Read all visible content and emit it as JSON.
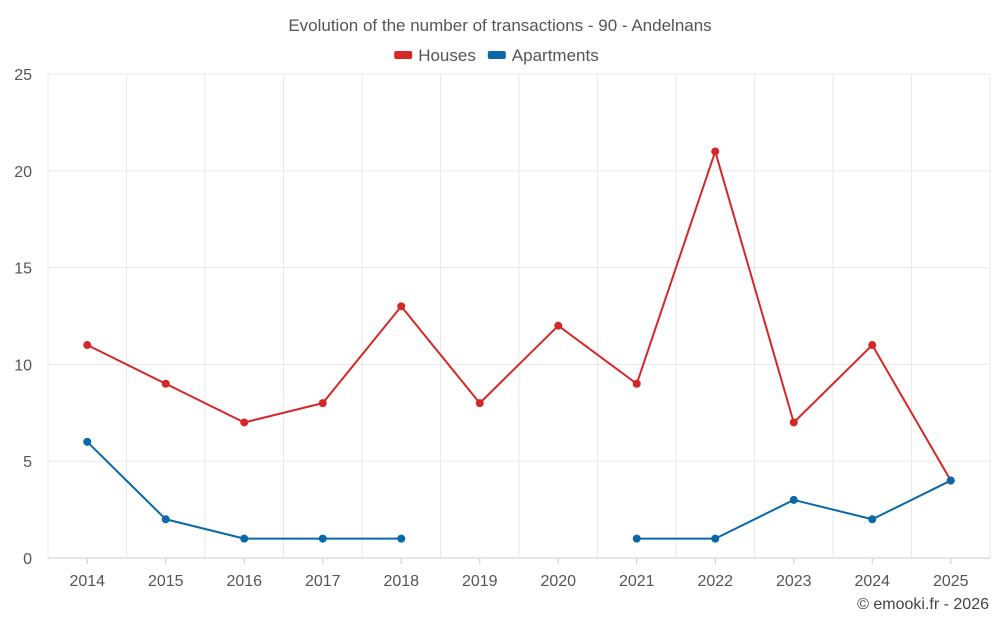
{
  "chart_data": {
    "type": "line",
    "title": "Evolution of the number of transactions - 90 - Andelnans",
    "xlabel": "",
    "ylabel": "",
    "categories": [
      "2014",
      "2015",
      "2016",
      "2017",
      "2018",
      "2019",
      "2020",
      "2021",
      "2022",
      "2023",
      "2024",
      "2025"
    ],
    "ylim": [
      0,
      25
    ],
    "yticks": [
      0,
      5,
      10,
      15,
      20,
      25
    ],
    "grid": true,
    "legend_position": "top-center",
    "series": [
      {
        "name": "Houses",
        "color": "#d62728",
        "values": [
          11,
          9,
          7,
          8,
          13,
          8,
          12,
          9,
          21,
          7,
          11,
          4
        ]
      },
      {
        "name": "Apartments",
        "color": "#0868a8",
        "values": [
          6,
          2,
          1,
          1,
          1,
          null,
          null,
          1,
          1,
          3,
          2,
          4
        ]
      }
    ]
  },
  "credit": "© emooki.fr - 2026"
}
